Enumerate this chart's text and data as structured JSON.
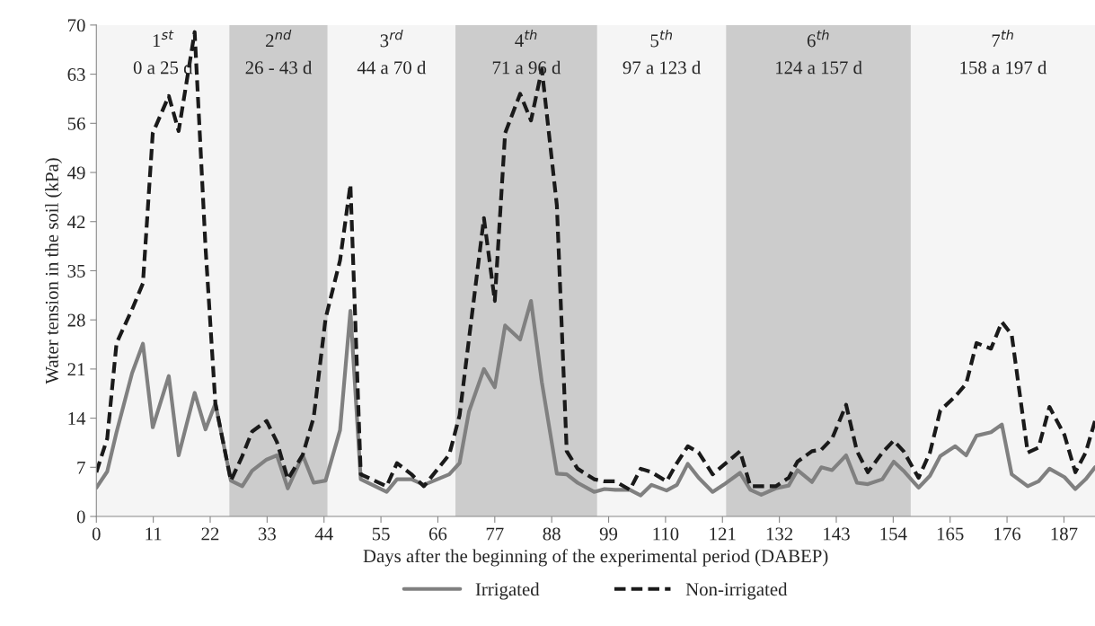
{
  "chart_data": {
    "type": "line",
    "xlabel": "Days after the beginning of the experimental period (DABEP)",
    "ylabel": "Water tension in the soil (kPa)",
    "xlim": [
      0,
      193
    ],
    "xticks": [
      0,
      11,
      22,
      33,
      44,
      55,
      66,
      77,
      88,
      99,
      110,
      121,
      132,
      143,
      154,
      165,
      176,
      187
    ],
    "ylim": [
      0,
      70
    ],
    "yticks": [
      0,
      7,
      14,
      21,
      28,
      35,
      42,
      49,
      56,
      63,
      70
    ],
    "grid": false,
    "legend": "bottom",
    "marker": "none",
    "x": [
      0,
      2.1,
      3.9,
      6.9,
      9.0,
      10.9,
      14.0,
      15.9,
      19.0,
      21.1,
      23.0,
      26.0,
      28.2,
      30.1,
      32.9,
      34.9,
      37.0,
      39.9,
      42.0,
      44.3,
      47.1,
      49.1,
      51.1,
      56.1,
      58.1,
      60.9,
      63.3,
      68.2,
      70.2,
      72.0,
      74.9,
      77.0,
      79.0,
      81.9,
      84.0,
      86.1,
      89.0,
      90.9,
      93.0,
      96.2,
      98.2,
      100.3,
      103.1,
      105.2,
      107.3,
      110.2,
      112.2,
      114.3,
      116.4,
      119.1,
      121.2,
      124.4,
      126.4,
      128.5,
      131.3,
      133.8,
      135.5,
      138.3,
      140.1,
      142.2,
      144.9,
      147.0,
      149.1,
      151.9,
      154.1,
      156.0,
      158.9,
      161.1,
      163.1,
      166.0,
      168.1,
      170.1,
      172.9,
      175.0,
      176.9,
      180.0,
      182.1,
      184.2,
      187.1,
      189.2,
      191.2,
      193
    ],
    "series": [
      {
        "name": "Irrigated",
        "color": "#808080",
        "line_style": "solid",
        "values": [
          4.1,
          6.4,
          12.0,
          20.4,
          24.6,
          12.7,
          20.0,
          8.7,
          17.6,
          12.4,
          16.1,
          5.1,
          4.3,
          6.5,
          8.1,
          8.7,
          4.0,
          8.7,
          4.8,
          5.1,
          12.3,
          29.3,
          5.3,
          3.5,
          5.3,
          5.3,
          4.5,
          6.0,
          7.6,
          14.9,
          21.0,
          18.4,
          27.2,
          25.2,
          30.7,
          19.1,
          6.1,
          6.0,
          4.8,
          3.5,
          3.9,
          3.8,
          3.8,
          3.0,
          4.5,
          3.7,
          4.5,
          7.5,
          5.5,
          3.5,
          4.5,
          6.2,
          3.8,
          3.1,
          4.0,
          4.4,
          6.6,
          4.9,
          7.0,
          6.6,
          8.7,
          4.8,
          4.6,
          5.3,
          7.8,
          6.5,
          4.1,
          5.8,
          8.6,
          10.0,
          8.7,
          11.5,
          12.0,
          13.1,
          6.0,
          4.3,
          5.0,
          6.8,
          5.6,
          3.9,
          5.3,
          7.0
        ]
      },
      {
        "name": "Non-irrigated",
        "color": "#1a1a1a",
        "line_style": "dashed",
        "values": [
          6.3,
          11.1,
          24.7,
          29.5,
          33.2,
          54.6,
          59.9,
          54.9,
          69.0,
          38.3,
          16.1,
          5.1,
          8.6,
          12.1,
          13.6,
          10.6,
          5.3,
          8.8,
          14.1,
          28.2,
          36.5,
          47.3,
          6.0,
          4.3,
          7.6,
          6.0,
          4.3,
          8.8,
          14.4,
          25.2,
          42.5,
          30.7,
          54.6,
          60.2,
          56.4,
          63.7,
          44.3,
          9.3,
          6.8,
          5.3,
          5.0,
          5.0,
          3.8,
          6.8,
          6.3,
          5.0,
          7.6,
          10.0,
          9.1,
          6.0,
          7.3,
          9.3,
          4.3,
          4.3,
          4.3,
          5.5,
          7.8,
          9.3,
          9.5,
          11.1,
          15.9,
          9.3,
          6.3,
          9.1,
          10.8,
          9.3,
          5.5,
          9.1,
          15.1,
          17.1,
          18.9,
          24.7,
          23.9,
          27.7,
          25.9,
          9.1,
          9.8,
          15.6,
          11.6,
          6.3,
          9.1,
          13.6
        ]
      }
    ],
    "bands": [
      {
        "axis": "x",
        "from": 0,
        "to": 25.7,
        "label": "1$^{st}$\n0 a 25 d",
        "color": "#f5f5f5"
      },
      {
        "axis": "x",
        "from": 25.7,
        "to": 44.7,
        "label": "2$^{nd}$\n26 - 43 d",
        "color": "#cccccc"
      },
      {
        "axis": "x",
        "from": 44.7,
        "to": 69.4,
        "label": "3$^{rd}$\n44 a 70 d",
        "color": "#f5f5f5"
      },
      {
        "axis": "x",
        "from": 69.4,
        "to": 96.8,
        "label": "4$^{th}$\n71 a 96 d",
        "color": "#cccccc"
      },
      {
        "axis": "x",
        "from": 96.8,
        "to": 121.7,
        "label": "5$^{th}$\n97 a 123 d",
        "color": "#f5f5f5"
      },
      {
        "axis": "x",
        "from": 121.7,
        "to": 157.4,
        "label": "6$^{th}$\n124 a 157 d",
        "color": "#cccccc"
      },
      {
        "axis": "x",
        "from": 157.4,
        "to": 193,
        "label": "7$^{th}$\n158 a 197 d",
        "color": "#f5f5f5"
      }
    ]
  }
}
